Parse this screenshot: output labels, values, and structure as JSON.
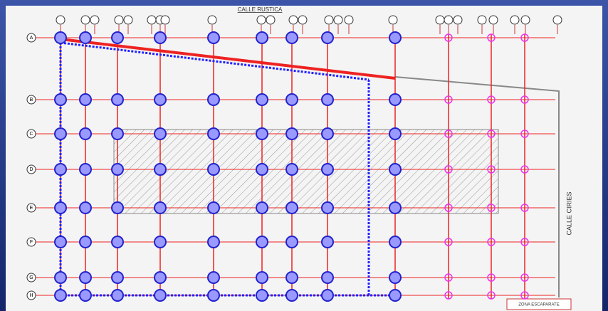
{
  "drawing": {
    "street_top": "CALLE RUSTICA",
    "street_right": "CALLE CIRIES",
    "stamp": "ZONA ESCAPARATE",
    "row_labels": [
      "A",
      "B",
      "C",
      "D",
      "E",
      "F",
      "G",
      "H"
    ]
  }
}
